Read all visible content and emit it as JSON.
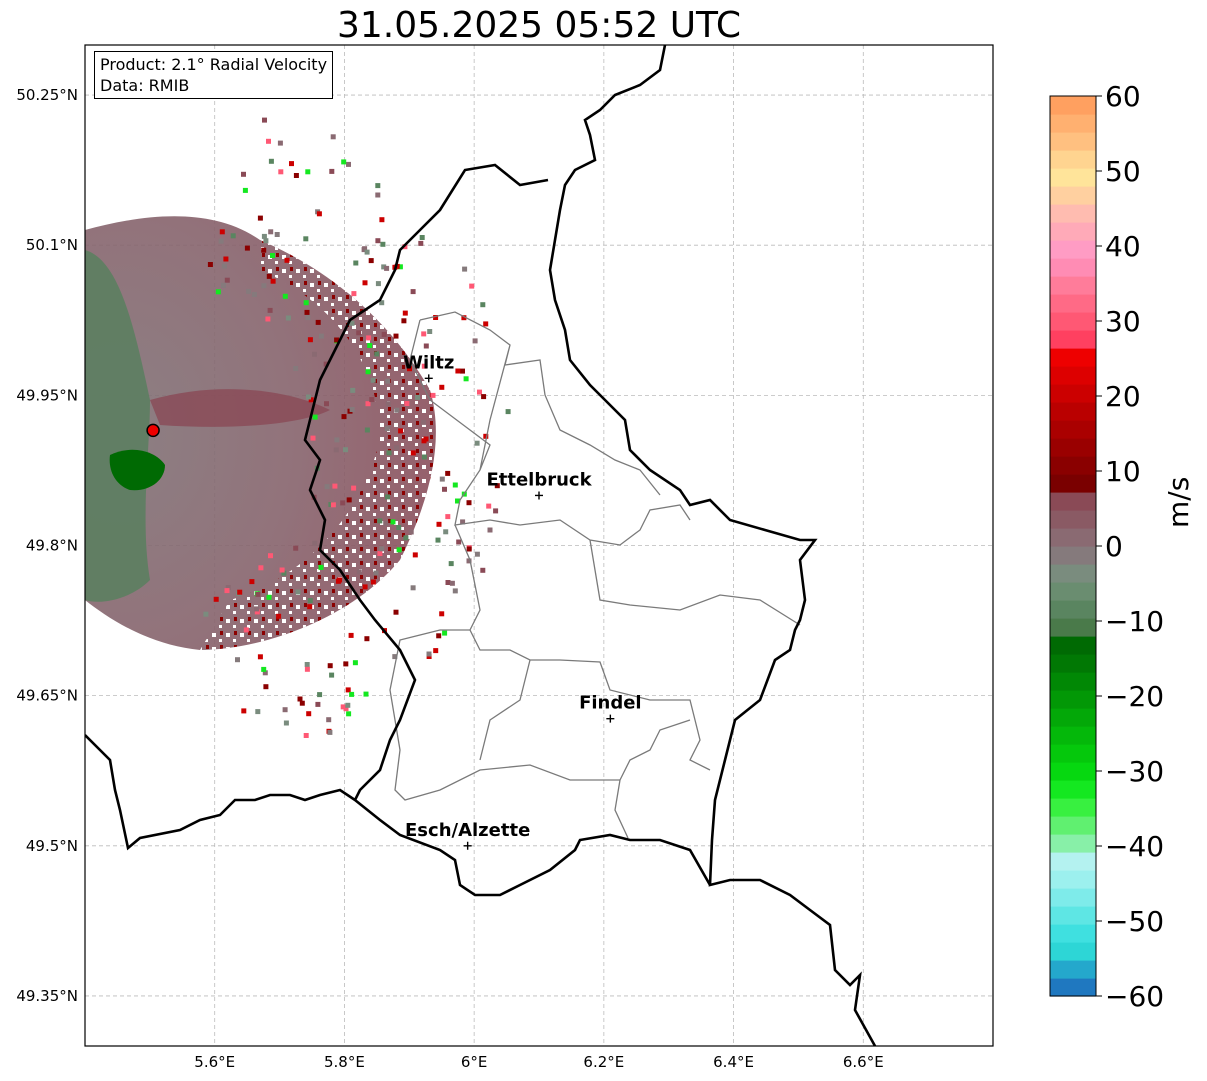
{
  "title": "31.05.2025 05:52 UTC",
  "info": {
    "product": "Product: 2.1° Radial Velocity",
    "data": "Data: RMIB"
  },
  "map": {
    "lon_range": [
      5.4,
      6.8
    ],
    "lat_range": [
      49.3,
      50.3
    ],
    "lat_ticks": [
      {
        "value": 50.25,
        "label": "50.25°N"
      },
      {
        "value": 50.1,
        "label": "50.1°N"
      },
      {
        "value": 49.95,
        "label": "49.95°N"
      },
      {
        "value": 49.8,
        "label": "49.8°N"
      },
      {
        "value": 49.65,
        "label": "49.65°N"
      },
      {
        "value": 49.5,
        "label": "49.5°N"
      },
      {
        "value": 49.35,
        "label": "49.35°N"
      }
    ],
    "lon_ticks": [
      {
        "value": 5.6,
        "label": "5.6°E"
      },
      {
        "value": 5.8,
        "label": "5.8°E"
      },
      {
        "value": 6.0,
        "label": "6°E"
      },
      {
        "value": 6.2,
        "label": "6.2°E"
      },
      {
        "value": 6.4,
        "label": "6.4°E"
      },
      {
        "value": 6.6,
        "label": "6.6°E"
      }
    ],
    "cities": [
      {
        "name": "Wiltz",
        "lon": 5.93,
        "lat": 49.967
      },
      {
        "name": "Ettelbruck",
        "lon": 6.1,
        "lat": 49.85
      },
      {
        "name": "Findel",
        "lon": 6.21,
        "lat": 49.627
      },
      {
        "name": "Esch/Alzette",
        "lon": 5.99,
        "lat": 49.5
      }
    ],
    "radar_site": {
      "lon": 5.505,
      "lat": 49.915
    }
  },
  "colorbar": {
    "label": "m/s",
    "range": [
      -60,
      60
    ],
    "ticks": [
      {
        "value": 60,
        "label": "60"
      },
      {
        "value": 50,
        "label": "50"
      },
      {
        "value": 40,
        "label": "40"
      },
      {
        "value": 30,
        "label": "30"
      },
      {
        "value": 20,
        "label": "20"
      },
      {
        "value": 10,
        "label": "10"
      },
      {
        "value": 0,
        "label": "0"
      },
      {
        "value": -10,
        "label": "−10"
      },
      {
        "value": -20,
        "label": "−20"
      },
      {
        "value": -30,
        "label": "−30"
      },
      {
        "value": -40,
        "label": "−40"
      },
      {
        "value": -50,
        "label": "−50"
      },
      {
        "value": -60,
        "label": "−60"
      }
    ],
    "colors": [
      "#1f78c0",
      "#24a8cc",
      "#2dd6d6",
      "#3fe0e0",
      "#5ee6e4",
      "#7eebea",
      "#9cf0ee",
      "#b4f2f0",
      "#88f0a8",
      "#60f070",
      "#38f040",
      "#14e820",
      "#06d810",
      "#05c80c",
      "#04b80a",
      "#03a808",
      "#029806",
      "#018805",
      "#017804",
      "#006a03",
      "#4a7a4a",
      "#5a8560",
      "#6a8d70",
      "#7a8c7e",
      "#857a7c",
      "#8a6a72",
      "#8a5a64",
      "#8a4a56",
      "#7a0000",
      "#8a0000",
      "#9a0000",
      "#aa0000",
      "#ba0000",
      "#cc0000",
      "#dd0000",
      "#ee0000",
      "#ff4060",
      "#ff5874",
      "#ff6a86",
      "#ff7c9a",
      "#ff8cb4",
      "#ff9cc4",
      "#ffaab8",
      "#ffbcb0",
      "#ffd0a0",
      "#ffe49a",
      "#ffd490",
      "#ffc080",
      "#ffb070",
      "#ffa060"
    ]
  }
}
